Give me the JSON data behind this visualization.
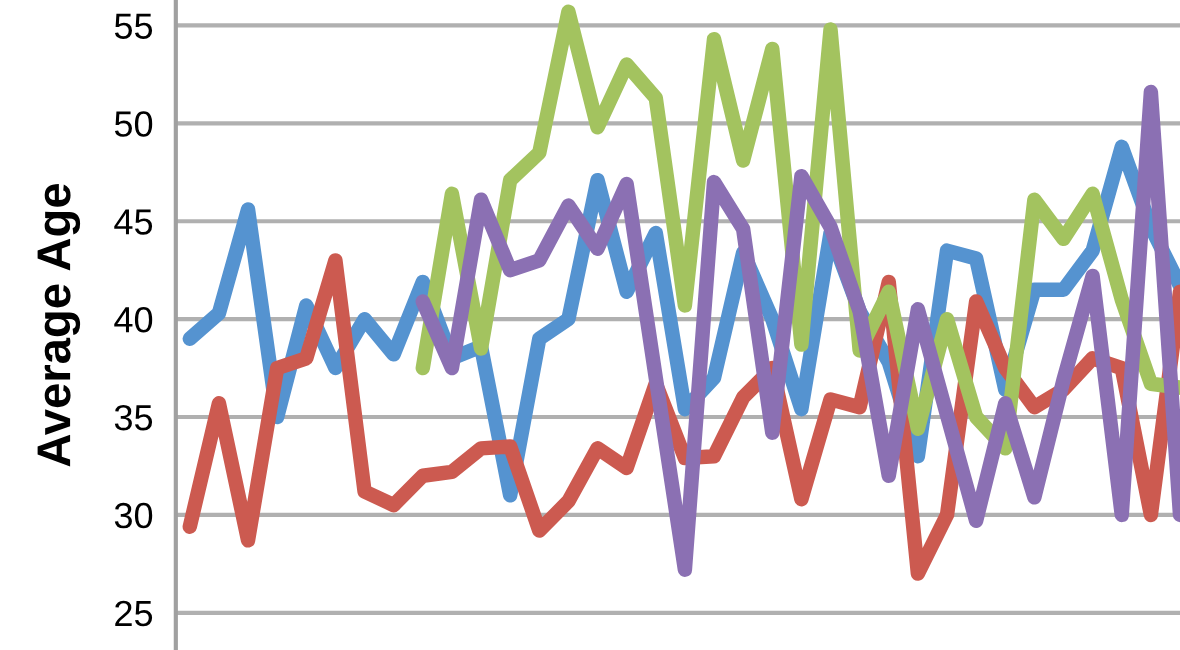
{
  "chart_data": {
    "type": "line",
    "ylabel": "Average Age",
    "categories": [
      null,
      null,
      null,
      null,
      null,
      null,
      null,
      null,
      null,
      null,
      null,
      null,
      null,
      null,
      null,
      null,
      null,
      null,
      null,
      null,
      null,
      null,
      null,
      null,
      null,
      null,
      null,
      null,
      null,
      null,
      null,
      null,
      null,
      null,
      null
    ],
    "series": [
      {
        "color": "#5593d0",
        "values": [
          39.0,
          40.3,
          45.6,
          35.0,
          40.7,
          37.5,
          40.0,
          38.2,
          41.9,
          38.0,
          38.6,
          31.0,
          39.0,
          40.0,
          47.1,
          41.4,
          44.4,
          35.4,
          37.0,
          43.4,
          40.0,
          35.4,
          44.4,
          40.4,
          37.8,
          33.0,
          43.5,
          43.1,
          36.4,
          41.5,
          41.5,
          43.5,
          48.8,
          44.7,
          41.7
        ]
      },
      {
        "color": "#cc5a50",
        "values": [
          29.4,
          35.7,
          28.7,
          37.5,
          38.0,
          43.0,
          31.2,
          30.5,
          32.0,
          32.2,
          33.4,
          33.5,
          29.2,
          30.7,
          33.4,
          32.4,
          36.7,
          32.9,
          33.0,
          36.0,
          37.5,
          30.8,
          35.9,
          35.5,
          41.9,
          27.0,
          30.0,
          40.9,
          37.5,
          35.5,
          36.4,
          38.0,
          37.5,
          30.0,
          41.4
        ]
      },
      {
        "color": "#a3c35f",
        "values": [
          null,
          null,
          null,
          null,
          null,
          null,
          null,
          null,
          37.5,
          46.4,
          38.5,
          47.1,
          48.5,
          55.7,
          49.8,
          53.0,
          51.3,
          40.7,
          54.3,
          48.1,
          53.8,
          38.7,
          54.8,
          38.4,
          41.4,
          34.4,
          40.0,
          35.0,
          33.4,
          46.1,
          44.1,
          46.4,
          41.0,
          36.7,
          36.5
        ]
      },
      {
        "color": "#8b70b3",
        "values": [
          null,
          null,
          null,
          null,
          null,
          null,
          null,
          null,
          40.9,
          37.5,
          46.1,
          42.5,
          43.0,
          45.8,
          43.6,
          46.9,
          37.0,
          27.2,
          47.0,
          44.6,
          34.2,
          47.3,
          44.7,
          40.4,
          32.0,
          40.5,
          35.1,
          29.7,
          35.7,
          30.9,
          36.9,
          42.2,
          30.0,
          51.6,
          30.0
        ]
      }
    ],
    "ylim": [
      23.1,
      56.3
    ],
    "yticks": [
      25,
      30,
      35,
      40,
      45,
      50,
      55
    ],
    "grid": "y",
    "tick_labels": "y",
    "marker": "none",
    "line_style": "solid"
  }
}
